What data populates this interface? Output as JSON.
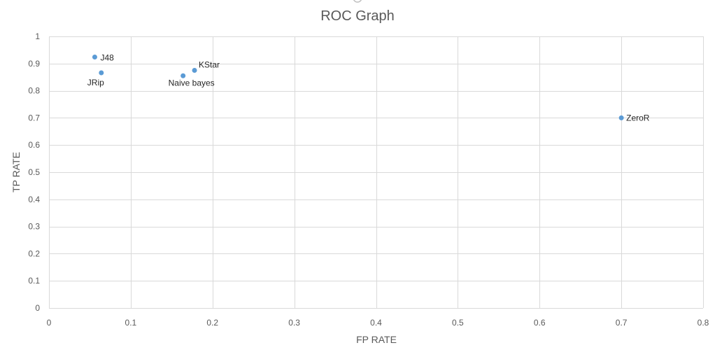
{
  "chart_data": {
    "type": "scatter",
    "title": "ROC Graph",
    "xlabel": "FP RATE",
    "ylabel": "TP RATE",
    "xlim": [
      0,
      0.8
    ],
    "ylim": [
      0,
      1
    ],
    "x_ticks": [
      "0",
      "0.1",
      "0.2",
      "0.3",
      "0.4",
      "0.5",
      "0.6",
      "0.7",
      "0.8"
    ],
    "y_ticks": [
      "0",
      "0.1",
      "0.2",
      "0.3",
      "0.4",
      "0.5",
      "0.6",
      "0.7",
      "0.8",
      "0.9",
      "1"
    ],
    "grid": true,
    "legend": "none",
    "marker_color": "#5B9BD5",
    "points": [
      {
        "label": "J48",
        "x": 0.056,
        "y": 0.924
      },
      {
        "label": "JRip",
        "x": 0.064,
        "y": 0.866
      },
      {
        "label": "KStar",
        "x": 0.178,
        "y": 0.875
      },
      {
        "label": "Naive bayes",
        "x": 0.164,
        "y": 0.855
      },
      {
        "label": "ZeroR",
        "x": 0.7,
        "y": 0.7
      }
    ]
  }
}
